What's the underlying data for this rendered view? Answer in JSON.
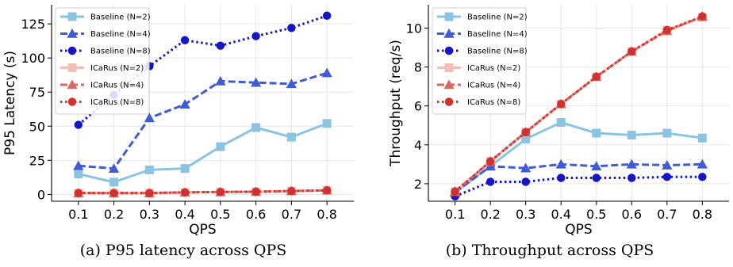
{
  "chart_data": [
    {
      "type": "line",
      "caption": "(a) P95 latency across QPS",
      "xlabel": "QPS",
      "ylabel": "P95 Latency (s)",
      "x": [
        0.1,
        0.2,
        0.3,
        0.4,
        0.5,
        0.6,
        0.7,
        0.8
      ],
      "x_ticks": [
        "0.1",
        "0.2",
        "0.3",
        "0.4",
        "0.5",
        "0.6",
        "0.7",
        "0.8"
      ],
      "ylim": [
        -5,
        139
      ],
      "y_ticks": [
        0,
        25,
        50,
        75,
        100,
        125
      ],
      "grid": true,
      "legend_position": "top-left",
      "series": [
        {
          "name": "Baseline (N=2)",
          "values": [
            15,
            9,
            18,
            19,
            35,
            49,
            42,
            52
          ],
          "color": "#89c4e3",
          "marker": "square",
          "dash": "solid"
        },
        {
          "name": "Baseline (N=4)",
          "values": [
            21,
            19,
            56,
            66,
            83,
            82,
            81,
            89
          ],
          "color": "#3f5bd6",
          "marker": "triangle",
          "dash": "dashed"
        },
        {
          "name": "Baseline (N=8)",
          "values": [
            51,
            73,
            94,
            113,
            109,
            116,
            122,
            131
          ],
          "color": "#1414c8",
          "marker": "circle",
          "dash": "dotted"
        },
        {
          "name": "ICaRus (N=2)",
          "values": [
            1,
            1,
            1,
            1.5,
            1.8,
            2,
            2.5,
            3
          ],
          "color": "#f0c0b8",
          "marker": "square",
          "dash": "solid"
        },
        {
          "name": "ICaRus (N=4)",
          "values": [
            1,
            1,
            1,
            1.5,
            1.8,
            2,
            2.5,
            3
          ],
          "color": "#d96a60",
          "marker": "triangle",
          "dash": "dashed"
        },
        {
          "name": "ICaRus (N=8)",
          "values": [
            1,
            1,
            1,
            1.5,
            1.8,
            2,
            2.5,
            3
          ],
          "color": "#d43030",
          "marker": "circle",
          "dash": "dotted"
        }
      ]
    },
    {
      "type": "line",
      "caption": "(b) Throughput across QPS",
      "xlabel": "QPS",
      "ylabel": "Throughput (req/s)",
      "x": [
        0.1,
        0.2,
        0.3,
        0.4,
        0.5,
        0.6,
        0.7,
        0.8
      ],
      "x_ticks": [
        "0.1",
        "0.2",
        "0.3",
        "0.4",
        "0.5",
        "0.6",
        "0.7",
        "0.8"
      ],
      "ylim": [
        1.1,
        11.2
      ],
      "y_ticks": [
        2,
        4,
        6,
        8,
        10
      ],
      "grid": true,
      "legend_position": "top-left",
      "series": [
        {
          "name": "Baseline (N=2)",
          "values": [
            1.55,
            2.9,
            4.3,
            5.15,
            4.6,
            4.5,
            4.6,
            4.35
          ],
          "color": "#89c4e3",
          "marker": "square",
          "dash": "solid"
        },
        {
          "name": "Baseline (N=4)",
          "values": [
            1.55,
            2.9,
            2.8,
            3.0,
            2.9,
            3.0,
            2.95,
            3.0
          ],
          "color": "#3f5bd6",
          "marker": "triangle",
          "dash": "dashed"
        },
        {
          "name": "Baseline (N=8)",
          "values": [
            1.35,
            2.1,
            2.1,
            2.3,
            2.3,
            2.3,
            2.35,
            2.35
          ],
          "color": "#1414c8",
          "marker": "circle",
          "dash": "dotted"
        },
        {
          "name": "ICaRus (N=2)",
          "values": [
            1.6,
            3.15,
            4.65,
            6.1,
            7.5,
            8.8,
            9.9,
            10.55
          ],
          "color": "#f0c0b8",
          "marker": "square",
          "dash": "solid"
        },
        {
          "name": "ICaRus (N=4)",
          "values": [
            1.6,
            3.15,
            4.65,
            6.1,
            7.5,
            8.8,
            9.85,
            10.6
          ],
          "color": "#d96a60",
          "marker": "triangle",
          "dash": "dashed"
        },
        {
          "name": "ICaRus (N=8)",
          "values": [
            1.6,
            3.15,
            4.65,
            6.1,
            7.5,
            8.8,
            9.9,
            10.6
          ],
          "color": "#d43030",
          "marker": "circle",
          "dash": "dotted"
        }
      ]
    }
  ]
}
